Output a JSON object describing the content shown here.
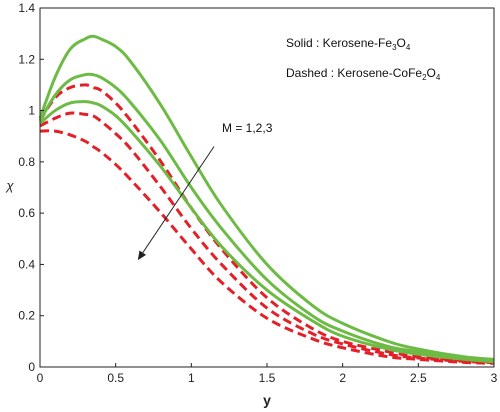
{
  "chart_data": {
    "type": "line",
    "xlabel": "y",
    "ylabel": "χ",
    "xlim": [
      0,
      3
    ],
    "ylim": [
      0,
      1.4
    ],
    "xticks": [
      "0",
      "0.5",
      "1",
      "1.5",
      "2",
      "2.5",
      "3"
    ],
    "yticks": [
      "0",
      "0.2",
      "0.4",
      "0.6",
      "0.8",
      "1",
      "1.2",
      "1.4"
    ],
    "grid": false,
    "legend": {
      "placement": "top-right",
      "solid_prefix": "Solid : Kerosene-Fe",
      "solid_sub1": "3",
      "solid_mid": "O",
      "solid_sub2": "4",
      "dashed_prefix": "Dashed : Kerosene-CoFe",
      "dashed_sub1": "2",
      "dashed_mid": "O",
      "dashed_sub2": "4"
    },
    "annotation": {
      "text": "M = 1,2,3",
      "arrow_from": [
        1.15,
        0.86
      ],
      "arrow_to": [
        0.65,
        0.42
      ]
    },
    "colors": {
      "solid": "#6dbb45",
      "dashed": "#e32028"
    },
    "x": [
      0,
      0.1,
      0.2,
      0.3,
      0.35,
      0.4,
      0.5,
      0.6,
      0.8,
      1.0,
      1.2,
      1.5,
      1.8,
      2.0,
      2.3,
      2.5,
      2.8,
      3.0
    ],
    "series": [
      {
        "style": "solid",
        "values": [
          0.97,
          1.13,
          1.24,
          1.28,
          1.29,
          1.28,
          1.25,
          1.19,
          1.02,
          0.82,
          0.63,
          0.4,
          0.24,
          0.17,
          0.1,
          0.07,
          0.04,
          0.03
        ]
      },
      {
        "style": "solid",
        "values": [
          0.96,
          1.06,
          1.12,
          1.14,
          1.14,
          1.13,
          1.09,
          1.03,
          0.88,
          0.7,
          0.54,
          0.34,
          0.2,
          0.14,
          0.08,
          0.06,
          0.035,
          0.025
        ]
      },
      {
        "style": "solid",
        "values": [
          0.95,
          1.0,
          1.03,
          1.035,
          1.03,
          1.02,
          0.98,
          0.92,
          0.78,
          0.62,
          0.47,
          0.3,
          0.18,
          0.12,
          0.07,
          0.05,
          0.03,
          0.02
        ]
      },
      {
        "style": "dashed",
        "values": [
          0.96,
          1.05,
          1.09,
          1.1,
          1.09,
          1.08,
          1.03,
          0.96,
          0.8,
          0.62,
          0.46,
          0.27,
          0.15,
          0.1,
          0.06,
          0.04,
          0.025,
          0.02
        ]
      },
      {
        "style": "dashed",
        "values": [
          0.94,
          0.97,
          0.99,
          0.985,
          0.98,
          0.96,
          0.91,
          0.85,
          0.7,
          0.54,
          0.4,
          0.23,
          0.13,
          0.09,
          0.05,
          0.035,
          0.022,
          0.017
        ]
      },
      {
        "style": "dashed",
        "values": [
          0.92,
          0.92,
          0.905,
          0.88,
          0.86,
          0.84,
          0.79,
          0.73,
          0.6,
          0.46,
          0.33,
          0.19,
          0.11,
          0.075,
          0.04,
          0.03,
          0.018,
          0.014
        ]
      }
    ]
  }
}
